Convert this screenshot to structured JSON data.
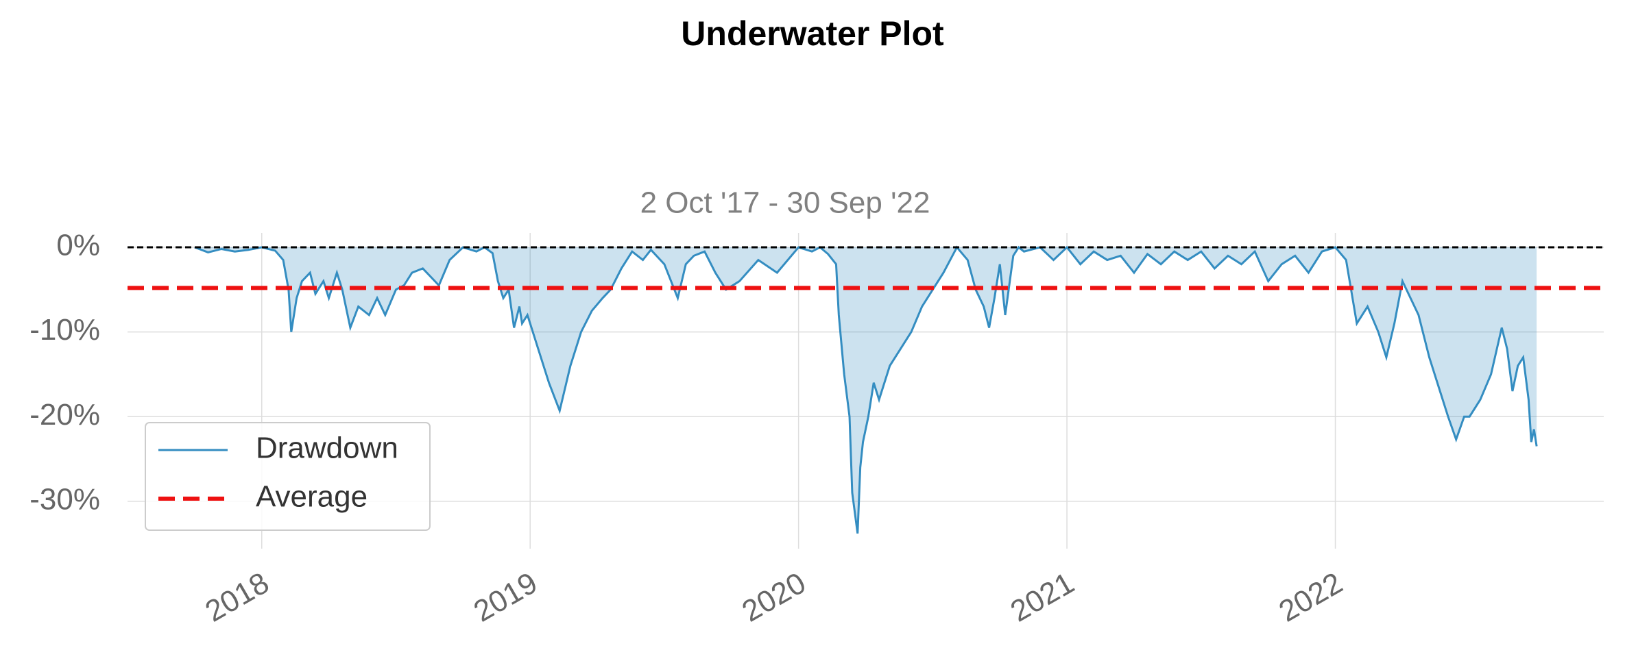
{
  "chart_data": {
    "type": "area",
    "title": "Underwater Plot",
    "subtitle": "2 Oct '17 - 30 Sep '22",
    "xlim": [
      2017.5,
      2023.0
    ],
    "xticks": [
      2018,
      2019,
      2020,
      2021,
      2022
    ],
    "ylim": [
      -35.6,
      1.7
    ],
    "yticks": [
      {
        "value": 0,
        "label": "0%"
      },
      {
        "value": -10,
        "label": "-10%"
      },
      {
        "value": -20,
        "label": "-20%"
      },
      {
        "value": -30,
        "label": "-30%"
      }
    ],
    "grid": true,
    "legend": "lower left",
    "series": [
      {
        "name": "Drawdown",
        "color": "#348dc1",
        "x": [
          2017.75,
          2017.8,
          2017.85,
          2017.9,
          2017.95,
          2018.0,
          2018.05,
          2018.08,
          2018.1,
          2018.11,
          2018.13,
          2018.15,
          2018.18,
          2018.2,
          2018.23,
          2018.25,
          2018.28,
          2018.3,
          2018.33,
          2018.36,
          2018.4,
          2018.43,
          2018.46,
          2018.5,
          2018.53,
          2018.56,
          2018.6,
          2018.63,
          2018.66,
          2018.7,
          2018.75,
          2018.8,
          2018.83,
          2018.86,
          2018.88,
          2018.9,
          2018.92,
          2018.94,
          2018.96,
          2018.97,
          2018.99,
          2019.01,
          2019.03,
          2019.07,
          2019.11,
          2019.15,
          2019.19,
          2019.23,
          2019.27,
          2019.3,
          2019.34,
          2019.38,
          2019.42,
          2019.45,
          2019.5,
          2019.55,
          2019.58,
          2019.61,
          2019.65,
          2019.69,
          2019.73,
          2019.78,
          2019.85,
          2019.92,
          2020.0,
          2020.05,
          2020.08,
          2020.11,
          2020.14,
          2020.15,
          2020.17,
          2020.19,
          2020.2,
          2020.22,
          2020.23,
          2020.24,
          2020.26,
          2020.28,
          2020.3,
          2020.34,
          2020.38,
          2020.42,
          2020.46,
          2020.5,
          2020.54,
          2020.59,
          2020.63,
          2020.66,
          2020.69,
          2020.71,
          2020.73,
          2020.75,
          2020.77,
          2020.8,
          2020.82,
          2020.84,
          2020.9,
          2020.95,
          2021.0,
          2021.05,
          2021.1,
          2021.15,
          2021.2,
          2021.25,
          2021.3,
          2021.35,
          2021.4,
          2021.45,
          2021.5,
          2021.55,
          2021.6,
          2021.65,
          2021.7,
          2021.75,
          2021.8,
          2021.85,
          2021.9,
          2021.95,
          2022.0,
          2022.04,
          2022.08,
          2022.12,
          2022.16,
          2022.19,
          2022.22,
          2022.25,
          2022.28,
          2022.31,
          2022.35,
          2022.39,
          2022.42,
          2022.45,
          2022.48,
          2022.5,
          2022.54,
          2022.58,
          2022.62,
          2022.64,
          2022.66,
          2022.68,
          2022.7,
          2022.72,
          2022.73,
          2022.74,
          2022.75
        ],
        "values": [
          0,
          -0.6,
          -0.2,
          -0.5,
          -0.3,
          0,
          -0.4,
          -1.5,
          -5,
          -10,
          -6,
          -4,
          -3,
          -5.5,
          -4,
          -6,
          -3,
          -5,
          -9.5,
          -7,
          -8,
          -6,
          -8,
          -5,
          -4.5,
          -3,
          -2.5,
          -3.5,
          -4.5,
          -1.5,
          0,
          -0.5,
          0,
          -0.7,
          -4,
          -6,
          -5,
          -9.5,
          -7,
          -9,
          -8,
          -10,
          -12,
          -16,
          -19.3,
          -14,
          -10,
          -7.5,
          -6,
          -5,
          -2.5,
          -0.5,
          -1.5,
          -0.3,
          -2,
          -6,
          -2,
          -1,
          -0.5,
          -3,
          -5,
          -4,
          -1.5,
          -3,
          0,
          -0.5,
          0,
          -0.8,
          -2,
          -8,
          -15,
          -20,
          -29,
          -33.8,
          -26,
          -23,
          -20,
          -16,
          -18,
          -14,
          -12,
          -10,
          -7,
          -5,
          -3,
          0,
          -1.5,
          -5,
          -7,
          -9.5,
          -6,
          -2,
          -8,
          -1,
          0,
          -0.5,
          0,
          -1.5,
          0,
          -2,
          -0.5,
          -1.5,
          -1,
          -3,
          -0.8,
          -2,
          -0.5,
          -1.5,
          -0.5,
          -2.5,
          -1,
          -2,
          -0.5,
          -4,
          -2,
          -1,
          -3,
          -0.5,
          0,
          -1.5,
          -9,
          -7,
          -10,
          -13,
          -9,
          -4,
          -6,
          -8,
          -13,
          -17,
          -20,
          -22.7,
          -20,
          -20,
          -18,
          -15,
          -9.5,
          -12,
          -17,
          -14,
          -13,
          -18,
          -23,
          -21.5,
          -23.5
        ]
      },
      {
        "name": "Average",
        "color": "#ee1111",
        "values": [
          -4.8
        ]
      }
    ]
  }
}
